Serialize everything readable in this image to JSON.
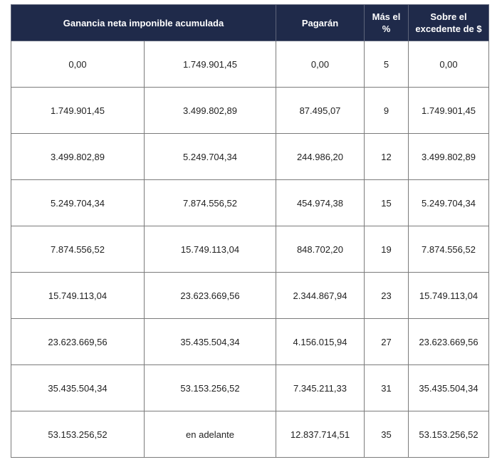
{
  "headers": {
    "ganancia": "Ganancia neta imponible acumulada",
    "pagaran": "Pagarán",
    "mas_line1": "Más el",
    "mas_line2": "%",
    "sobre_line1": "Sobre el",
    "sobre_line2": "excedente de $"
  },
  "rows": [
    [
      "0,00",
      "1.749.901,45",
      "0,00",
      "5",
      "0,00"
    ],
    [
      "1.749.901,45",
      "3.499.802,89",
      "87.495,07",
      "9",
      "1.749.901,45"
    ],
    [
      "3.499.802,89",
      "5.249.704,34",
      "244.986,20",
      "12",
      "3.499.802,89"
    ],
    [
      "5.249.704,34",
      "7.874.556,52",
      "454.974,38",
      "15",
      "5.249.704,34"
    ],
    [
      "7.874.556,52",
      "15.749.113,04",
      "848.702,20",
      "19",
      "7.874.556,52"
    ],
    [
      "15.749.113,04",
      "23.623.669,56",
      "2.344.867,94",
      "23",
      "15.749.113,04"
    ],
    [
      "23.623.669,56",
      "35.435.504,34",
      "4.156.015,94",
      "27",
      "23.623.669,56"
    ],
    [
      "35.435.504,34",
      "53.153.256,52",
      "7.345.211,33",
      "31",
      "35.435.504,34"
    ],
    [
      "53.153.256,52",
      "en adelante",
      "12.837.714,51",
      "35",
      "53.153.256,52"
    ]
  ]
}
